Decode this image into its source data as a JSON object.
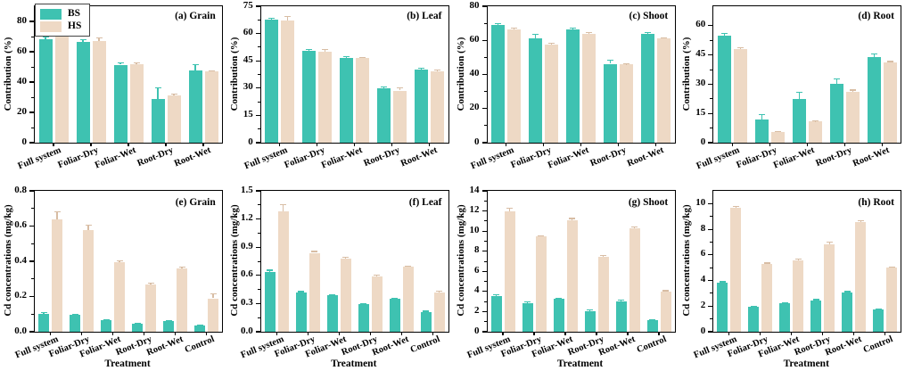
{
  "figure": {
    "legend": {
      "items": [
        {
          "label": "BS",
          "color": "#3ec2b1"
        },
        {
          "label": "HS",
          "color": "#eed9c5"
        }
      ]
    },
    "colors": {
      "axis": "#000000",
      "bs": "#3ec2b1",
      "hs": "#eed9c5",
      "bs_error": "#3ec2b1",
      "hs_error": "#d8bda4"
    }
  },
  "chart_data": [
    {
      "type": "bar",
      "panel_label": "(a) Grain",
      "ylabel": "Contribution (%)",
      "categories": [
        "Full system",
        "Foliar-Dry",
        "Foliar-Wet",
        "Root-Dry",
        "Root-Wet"
      ],
      "ylim": [
        0,
        90
      ],
      "ytick_values": [
        0,
        20,
        40,
        60,
        80
      ],
      "ytick_labels": [
        "0",
        "20",
        "40",
        "60",
        "80"
      ],
      "legend_position": "top-left",
      "grid": false,
      "series": [
        {
          "name": "BS",
          "values": [
            68,
            66.5,
            51.5,
            29,
            47.5
          ],
          "errors": [
            2,
            1.5,
            1,
            7,
            4
          ]
        },
        {
          "name": "HS",
          "values": [
            70,
            67,
            52,
            31,
            47
          ],
          "errors": [
            2.5,
            2,
            0.6,
            1.2,
            0.6
          ]
        }
      ]
    },
    {
      "type": "bar",
      "panel_label": "(b) Leaf",
      "ylabel": "Contribution (%)",
      "categories": [
        "Full system",
        "Foliar-Dry",
        "Foliar-Wet",
        "Root-Dry",
        "Root-Wet"
      ],
      "ylim": [
        0,
        75
      ],
      "ytick_values": [
        0,
        15,
        30,
        45,
        60,
        75
      ],
      "ytick_labels": [
        "0",
        "15",
        "30",
        "45",
        "60",
        "75"
      ],
      "grid": false,
      "series": [
        {
          "name": "BS",
          "values": [
            67.5,
            50.3,
            46.6,
            29.8,
            40.3
          ],
          "errors": [
            0.8,
            1,
            0.8,
            1,
            0.5
          ]
        },
        {
          "name": "HS",
          "values": [
            67.3,
            50.1,
            46.4,
            28.7,
            39.2
          ],
          "errors": [
            2,
            1.2,
            0.6,
            1.5,
            0.8
          ]
        }
      ]
    },
    {
      "type": "bar",
      "panel_label": "(c) Shoot",
      "ylabel": "Contribution (%)",
      "categories": [
        "Full system",
        "Foliar-Dry",
        "Foliar-Wet",
        "Root-Dry",
        "Root-Wet"
      ],
      "ylim": [
        0,
        80
      ],
      "ytick_values": [
        0,
        20,
        40,
        60,
        80
      ],
      "ytick_labels": [
        "0",
        "20",
        "40",
        "60",
        "80"
      ],
      "grid": false,
      "series": [
        {
          "name": "BS",
          "values": [
            69.3,
            61,
            66.3,
            46.3,
            64
          ],
          "errors": [
            0.5,
            2.5,
            0.8,
            2.3,
            0.6
          ]
        },
        {
          "name": "HS",
          "values": [
            66.5,
            57.7,
            64,
            45.8,
            61
          ],
          "errors": [
            0.8,
            0.5,
            0.5,
            0.5,
            0.5
          ]
        }
      ]
    },
    {
      "type": "bar",
      "panel_label": "(d) Root",
      "ylabel": "Contribution (%)",
      "categories": [
        "Full system",
        "Foliar-Dry",
        "Foliar-Wet",
        "Root-Dry",
        "Root-Wet"
      ],
      "ylim": [
        0,
        70
      ],
      "ytick_values": [
        0,
        15,
        30,
        45,
        60
      ],
      "ytick_labels": [
        "0",
        "15",
        "30",
        "45",
        "60"
      ],
      "grid": false,
      "series": [
        {
          "name": "BS",
          "values": [
            55,
            12,
            22.5,
            30.2,
            44
          ],
          "errors": [
            1,
            2.3,
            3.5,
            2.5,
            1.6
          ]
        },
        {
          "name": "HS",
          "values": [
            48,
            5.5,
            10.8,
            26,
            41.2
          ],
          "errors": [
            0.8,
            0.4,
            0.4,
            1,
            0.5
          ]
        }
      ]
    },
    {
      "type": "bar",
      "panel_label": "(e) Grain",
      "ylabel": "Cd concentrations (mg/kg)",
      "xlabel": "Treatment",
      "categories": [
        "Full system",
        "Foliar-Dry",
        "Foliar-Wet",
        "Root-Dry",
        "Root-Wet",
        "Control"
      ],
      "ylim": [
        0,
        0.8
      ],
      "ytick_values": [
        0,
        0.2,
        0.4,
        0.6,
        0.8
      ],
      "ytick_labels": [
        "0.0",
        "0.2",
        "0.4",
        "0.6",
        "0.8"
      ],
      "grid": false,
      "series": [
        {
          "name": "BS",
          "values": [
            0.1,
            0.095,
            0.065,
            0.045,
            0.06,
            0.035
          ],
          "errors": [
            0.008,
            0.006,
            0.004,
            0.004,
            0.004,
            0.004
          ]
        },
        {
          "name": "HS",
          "values": [
            0.64,
            0.575,
            0.395,
            0.27,
            0.36,
            0.19
          ],
          "errors": [
            0.04,
            0.03,
            0.008,
            0.006,
            0.006,
            0.025
          ]
        }
      ]
    },
    {
      "type": "bar",
      "panel_label": "(f) Leaf",
      "ylabel": "Cd concentrations (mg/kg)",
      "xlabel": "Treatment",
      "categories": [
        "Full system",
        "Foliar-Dry",
        "Foliar-Wet",
        "Root-Dry",
        "Root-Wet",
        "Control"
      ],
      "ylim": [
        0,
        1.5
      ],
      "ytick_values": [
        0,
        0.3,
        0.6,
        0.9,
        1.2,
        1.5
      ],
      "ytick_labels": [
        "0.0",
        "0.3",
        "0.6",
        "0.9",
        "1.2",
        "1.5"
      ],
      "grid": false,
      "series": [
        {
          "name": "BS",
          "values": [
            0.64,
            0.42,
            0.39,
            0.295,
            0.35,
            0.21
          ],
          "errors": [
            0.015,
            0.008,
            0.008,
            0.006,
            0.006,
            0.008
          ]
        },
        {
          "name": "HS",
          "values": [
            1.28,
            0.84,
            0.78,
            0.59,
            0.69,
            0.42
          ],
          "errors": [
            0.07,
            0.015,
            0.012,
            0.01,
            0.01,
            0.01
          ]
        }
      ]
    },
    {
      "type": "bar",
      "panel_label": "(g) Shoot",
      "ylabel": "Cd concentrations (mg/kg)",
      "xlabel": "Treatment",
      "categories": [
        "Full system",
        "Foliar-Dry",
        "Foliar-Wet",
        "Root-Dry",
        "Root-Wet",
        "Control"
      ],
      "ylim": [
        0,
        14
      ],
      "ytick_values": [
        0,
        2,
        4,
        6,
        8,
        10,
        12,
        14
      ],
      "ytick_labels": [
        "0",
        "2",
        "4",
        "6",
        "8",
        "10",
        "12",
        "14"
      ],
      "grid": false,
      "series": [
        {
          "name": "BS",
          "values": [
            3.55,
            2.8,
            3.25,
            2.05,
            3.05,
            1.15
          ],
          "errors": [
            0.1,
            0.15,
            0.1,
            0.1,
            0.08,
            0.05
          ]
        },
        {
          "name": "HS",
          "values": [
            12,
            9.45,
            11.1,
            7.45,
            10.3,
            4.0
          ],
          "errors": [
            0.3,
            0.1,
            0.15,
            0.12,
            0.12,
            0.08
          ]
        }
      ]
    },
    {
      "type": "bar",
      "panel_label": "(h) Root",
      "ylabel": "Cd concentrations (mg/kg)",
      "xlabel": "Treatment",
      "categories": [
        "Full system",
        "Foliar-Dry",
        "Foliar-Wet",
        "Root-Dry",
        "Root-Wet",
        "Control"
      ],
      "ylim": [
        0,
        11
      ],
      "ytick_values": [
        0,
        2,
        4,
        6,
        8,
        10
      ],
      "ytick_labels": [
        "0",
        "2",
        "4",
        "6",
        "8",
        "10"
      ],
      "grid": false,
      "series": [
        {
          "name": "BS",
          "values": [
            3.8,
            1.95,
            2.2,
            2.45,
            3.05,
            1.75
          ],
          "errors": [
            0.1,
            0.06,
            0.06,
            0.06,
            0.08,
            0.05
          ]
        },
        {
          "name": "HS",
          "values": [
            9.65,
            5.3,
            5.6,
            6.85,
            8.55,
            5.0
          ],
          "errors": [
            0.12,
            0.06,
            0.06,
            0.15,
            0.1,
            0.06
          ]
        }
      ]
    }
  ]
}
